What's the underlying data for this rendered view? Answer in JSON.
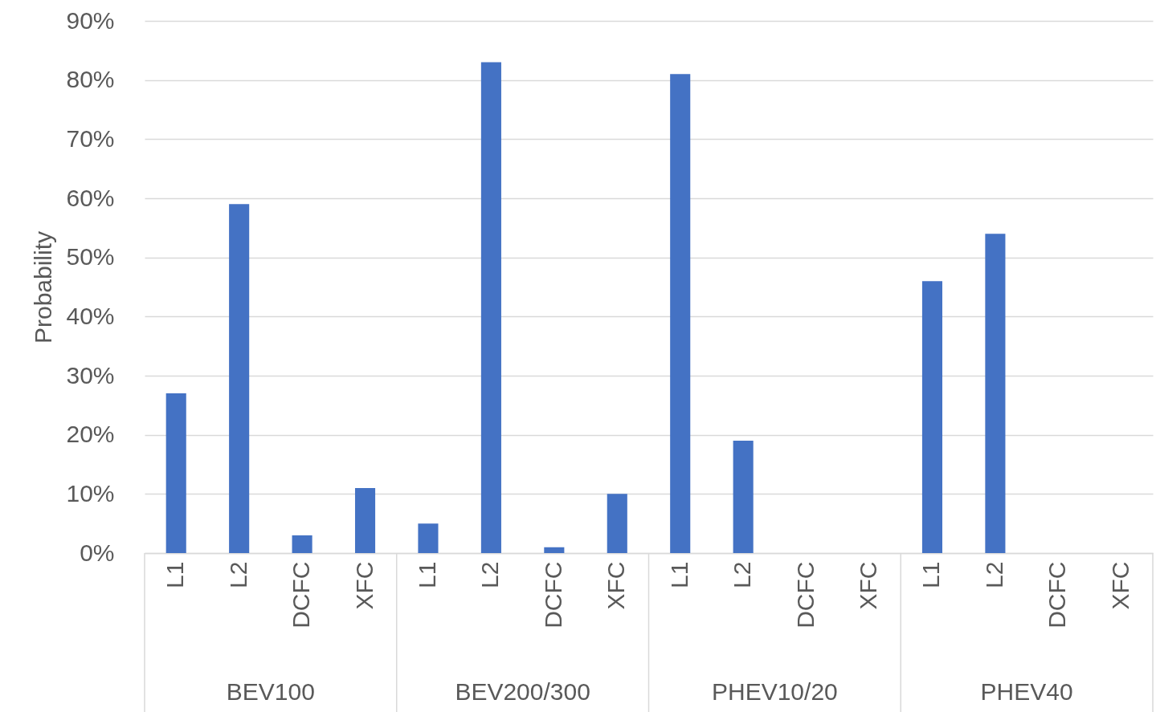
{
  "chart_data": {
    "type": "bar",
    "ylabel": "Probability",
    "categories": [
      "L1",
      "L2",
      "DCFC",
      "XFC",
      "L1",
      "L2",
      "DCFC",
      "XFC",
      "L1",
      "L2",
      "DCFC",
      "XFC",
      "L1",
      "L2",
      "DCFC",
      "XFC"
    ],
    "annotations": [
      "BEV100",
      "BEV200/300",
      "PHEV10/20",
      "PHEV40"
    ],
    "values": [
      27,
      59,
      3,
      11,
      5,
      83,
      1,
      10,
      81,
      19,
      0,
      0,
      46,
      54,
      0,
      0
    ],
    "color": "#4472c4",
    "ylim": [
      0,
      90
    ],
    "yticks": [
      {
        "value": 0,
        "label": "0%"
      },
      {
        "value": 10,
        "label": "10%"
      },
      {
        "value": 20,
        "label": "20%"
      },
      {
        "value": 30,
        "label": "30%"
      },
      {
        "value": 40,
        "label": "40%"
      },
      {
        "value": 50,
        "label": "50%"
      },
      {
        "value": 60,
        "label": "60%"
      },
      {
        "value": 70,
        "label": "70%"
      },
      {
        "value": 80,
        "label": "80%"
      },
      {
        "value": 90,
        "label": "90%"
      }
    ],
    "grid": "y"
  }
}
